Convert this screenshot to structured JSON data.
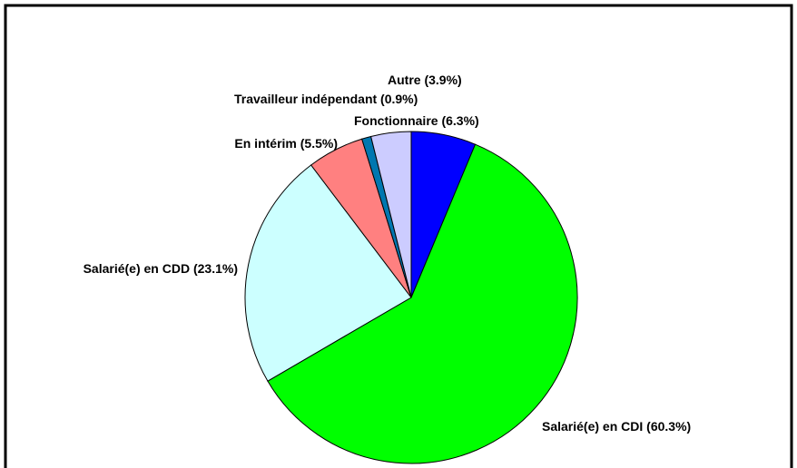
{
  "chart_data": {
    "type": "pie",
    "categories": [
      "Fonctionnaire",
      "Salarié(e) en CDI",
      "Salarié(e) en CDD",
      "En intérim",
      "Travailleur indépendant",
      "Autre"
    ],
    "values": [
      6.3,
      60.3,
      23.1,
      5.5,
      0.9,
      3.9
    ],
    "value_labels": [
      "(6.3%)",
      "(60.3%)",
      "(23.1%)",
      "(5.5%)",
      "(0.9%)",
      "(3.9%)"
    ],
    "colors": [
      "#0000ff",
      "#00ff00",
      "#ccffff",
      "#ff8080",
      "#0077b0",
      "#ccccff"
    ]
  }
}
